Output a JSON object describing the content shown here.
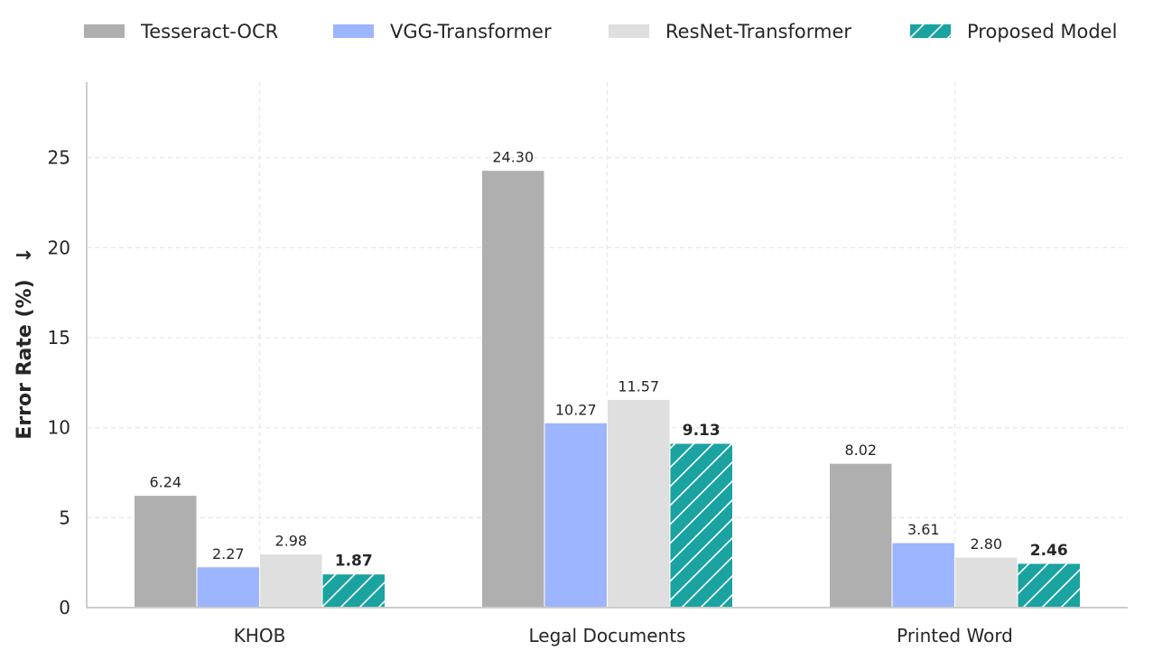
{
  "chart_data": {
    "type": "bar",
    "title": "",
    "xlabel": "",
    "ylabel": "Error Rate (%)",
    "ylabel_arrow": "↓",
    "categories": [
      "KHOB",
      "Legal Documents",
      "Printed Word"
    ],
    "series": [
      {
        "name": "Tesseract-OCR",
        "values": [
          6.24,
          24.3,
          8.02
        ],
        "labels": [
          "6.24",
          "24.30",
          "8.02"
        ],
        "color": "#afafaf",
        "hatch": false,
        "bold": false
      },
      {
        "name": "VGG-Transformer",
        "values": [
          2.27,
          10.27,
          3.61
        ],
        "labels": [
          "2.27",
          "10.27",
          "3.61"
        ],
        "color": "#9db4fe",
        "hatch": false,
        "bold": false
      },
      {
        "name": "ResNet-Transformer",
        "values": [
          2.98,
          11.57,
          2.8
        ],
        "labels": [
          "2.98",
          "11.57",
          "2.80"
        ],
        "color": "#dfdfdf",
        "hatch": false,
        "bold": false
      },
      {
        "name": "Proposed Model",
        "values": [
          1.87,
          9.13,
          2.46
        ],
        "labels": [
          "1.87",
          "9.13",
          "2.46"
        ],
        "color": "#1aa3a0",
        "hatch": true,
        "bold": true
      }
    ],
    "ylim": [
      0,
      29.2
    ],
    "yticks": [
      0,
      5,
      10,
      15,
      20,
      25
    ],
    "grid": true,
    "legend": "top"
  }
}
